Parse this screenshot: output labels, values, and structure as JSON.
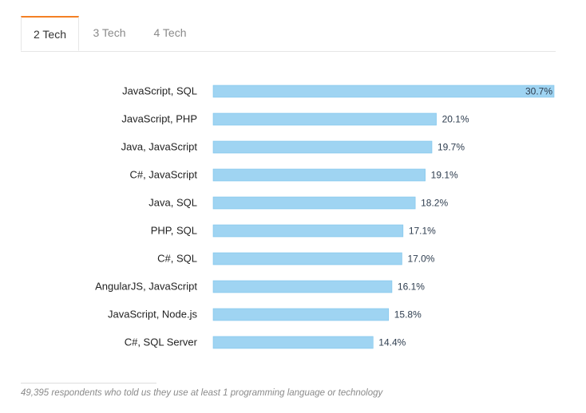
{
  "tabs": [
    {
      "label": "2 Tech",
      "active": true
    },
    {
      "label": "3 Tech",
      "active": false
    },
    {
      "label": "4 Tech",
      "active": false
    }
  ],
  "colors": {
    "bar": "#9fd4f2",
    "bar_edge": "#7cc4ec",
    "accent": "#f48024"
  },
  "chart_data": {
    "type": "bar",
    "orientation": "horizontal",
    "categories": [
      "JavaScript, SQL",
      "JavaScript, PHP",
      "Java, JavaScript",
      "C#, JavaScript",
      "Java, SQL",
      "PHP, SQL",
      "C#, SQL",
      "AngularJS, JavaScript",
      "JavaScript, Node.js",
      "C#, SQL Server"
    ],
    "values": [
      30.7,
      20.1,
      19.7,
      19.1,
      18.2,
      17.1,
      17.0,
      16.1,
      15.8,
      14.4
    ],
    "value_labels": [
      "30.7%",
      "20.1%",
      "19.7%",
      "19.1%",
      "18.2%",
      "17.1%",
      "17.0%",
      "16.1%",
      "15.8%",
      "14.4%"
    ],
    "xlim": [
      0,
      30.7
    ],
    "grid": false,
    "title": "",
    "xlabel": "",
    "ylabel": ""
  },
  "footnote": "49,395 respondents who told us they use at least 1 programming language or technology"
}
